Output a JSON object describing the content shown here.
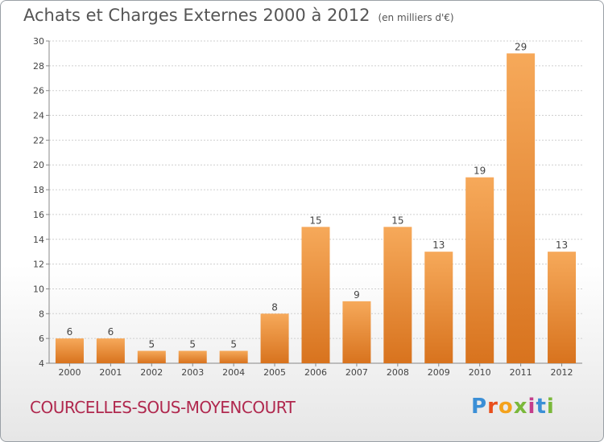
{
  "title": "Achats et Charges Externes 2000 à 2012",
  "unit": "(en milliers d'€)",
  "commune": "COURCELLES-SOUS-MOYENCOURT",
  "brand": {
    "letters": [
      "P",
      "r",
      "o",
      "x",
      "i",
      "t",
      "i"
    ],
    "colors": [
      "#3b8fd6",
      "#e94e1b",
      "#f4a21c",
      "#7ab83a",
      "#c43d8b",
      "#3b8fd6",
      "#7ab83a"
    ]
  },
  "colors": {
    "bar": "#f0892a",
    "title": "#555555",
    "commune": "#b0284e"
  },
  "chart_data": {
    "type": "bar",
    "categories": [
      "2000",
      "2001",
      "2002",
      "2003",
      "2004",
      "2005",
      "2006",
      "2007",
      "2008",
      "2009",
      "2010",
      "2011",
      "2012"
    ],
    "values": [
      6,
      6,
      5,
      5,
      5,
      8,
      15,
      9,
      15,
      13,
      19,
      29,
      13
    ],
    "ylim": [
      4,
      30
    ],
    "yticks": [
      4,
      6,
      8,
      10,
      12,
      14,
      16,
      18,
      20,
      22,
      24,
      26,
      28,
      30
    ],
    "grid": "horizontal dotted",
    "data_labels": true
  }
}
